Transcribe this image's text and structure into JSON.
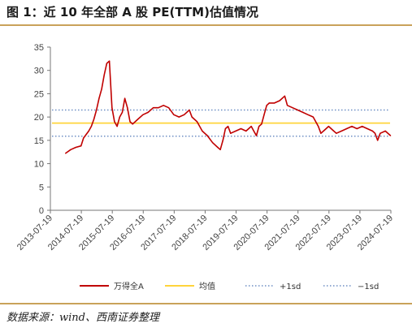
{
  "header": {
    "title": "图 1：近 10 年全部 A 股 PE(TTM)估值情况"
  },
  "footer": {
    "source": "数据来源：wind、西南证券整理"
  },
  "colors": {
    "accent_rule": "#c9a25a",
    "series_pe": "#c00000",
    "series_mean": "#ffd43b",
    "series_band": "#6f8fc4"
  },
  "chart_data": {
    "type": "line",
    "title": "",
    "xlabel": "",
    "ylabel": "",
    "ylim": [
      0,
      35
    ],
    "yticks": [
      "0",
      "5",
      "10",
      "15",
      "20",
      "25",
      "30",
      "35"
    ],
    "xlim": [
      "2013-07-19",
      "2024-07-19"
    ],
    "xticks": [
      "2013-07-19",
      "2014-07-19",
      "2015-07-19",
      "2016-07-19",
      "2017-07-19",
      "2018-07-19",
      "2019-07-19",
      "2020-07-19",
      "2021-07-19",
      "2022-07-19",
      "2023-07-19",
      "2024-07-19"
    ],
    "grid": false,
    "legend_position": "bottom",
    "series": [
      {
        "name": "万得全A",
        "style": "line",
        "x": [
          "2014-01",
          "2014-03",
          "2014-05",
          "2014-07",
          "2014-08",
          "2014-10",
          "2014-11",
          "2014-12",
          "2015-01",
          "2015-02",
          "2015-03",
          "2015-04",
          "2015-05",
          "2015-06",
          "2015-07",
          "2015-08",
          "2015-09",
          "2015-10",
          "2015-11",
          "2015-12",
          "2016-01",
          "2016-02",
          "2016-03",
          "2016-05",
          "2016-07",
          "2016-09",
          "2016-11",
          "2017-01",
          "2017-03",
          "2017-05",
          "2017-07",
          "2017-09",
          "2017-11",
          "2018-01",
          "2018-02",
          "2018-04",
          "2018-06",
          "2018-08",
          "2018-10",
          "2018-12",
          "2019-01",
          "2019-02",
          "2019-03",
          "2019-04",
          "2019-05",
          "2019-07",
          "2019-09",
          "2019-11",
          "2020-01",
          "2020-02",
          "2020-03",
          "2020-04",
          "2020-05",
          "2020-06",
          "2020-07",
          "2020-08",
          "2020-10",
          "2020-12",
          "2021-02",
          "2021-03",
          "2021-05",
          "2021-07",
          "2021-09",
          "2021-11",
          "2022-01",
          "2022-03",
          "2022-04",
          "2022-05",
          "2022-07",
          "2022-09",
          "2022-10",
          "2022-12",
          "2023-02",
          "2023-04",
          "2023-06",
          "2023-08",
          "2023-10",
          "2023-12",
          "2024-01",
          "2024-02",
          "2024-03",
          "2024-05",
          "2024-07"
        ],
        "values": [
          12.2,
          13.0,
          13.5,
          13.8,
          15.5,
          17.0,
          18.0,
          19.5,
          21.5,
          24.0,
          26.0,
          29.0,
          31.5,
          32.0,
          22.0,
          19.0,
          18.0,
          20.0,
          21.0,
          24.0,
          22.0,
          19.0,
          18.5,
          19.5,
          20.5,
          21.0,
          22.0,
          22.0,
          22.5,
          22.0,
          20.5,
          20.0,
          20.5,
          21.5,
          20.0,
          19.0,
          17.0,
          16.0,
          14.5,
          13.5,
          13.0,
          15.0,
          17.5,
          18.0,
          16.5,
          17.0,
          17.5,
          17.0,
          18.0,
          17.0,
          16.0,
          18.0,
          18.5,
          20.5,
          22.5,
          23.0,
          23.0,
          23.5,
          24.5,
          22.5,
          22.0,
          21.5,
          21.0,
          20.5,
          20.0,
          18.0,
          16.5,
          17.0,
          18.0,
          17.0,
          16.5,
          17.0,
          17.5,
          18.0,
          17.5,
          18.0,
          17.5,
          17.0,
          16.5,
          15.0,
          16.5,
          17.0,
          16.0
        ]
      },
      {
        "name": "均值",
        "style": "line",
        "value": 18.7
      },
      {
        "name": "+1sd",
        "style": "dotted",
        "value": 21.5
      },
      {
        "name": "−1sd",
        "style": "dotted",
        "value": 15.9
      }
    ]
  }
}
